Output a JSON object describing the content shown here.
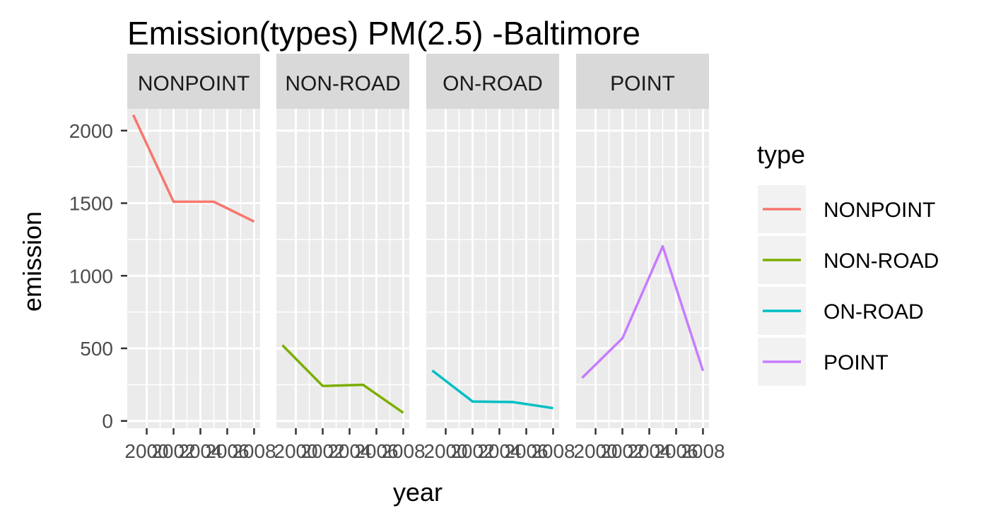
{
  "chart_data": {
    "type": "line",
    "title": "Emission(types) PM(2.5) -Baltimore",
    "xlabel": "year",
    "ylabel": "emission",
    "x": [
      1999,
      2002,
      2005,
      2008
    ],
    "x_tick_labels": [
      "2000",
      "2002",
      "2004",
      "2006",
      "2008"
    ],
    "y_ticks": [
      0,
      500,
      1000,
      1500,
      2000
    ],
    "xlim": [
      1998.55,
      2008.45
    ],
    "ylim": [
      -50,
      2150
    ],
    "grid": true,
    "facet_by": "type",
    "legend": {
      "title": "type",
      "position": "right"
    },
    "series": [
      {
        "name": "NONPOINT",
        "color": "#F8766D",
        "values": [
          2108,
          1510,
          1510,
          1373
        ]
      },
      {
        "name": "NON-ROAD",
        "color": "#7CAE00",
        "values": [
          522,
          241,
          249,
          56
        ]
      },
      {
        "name": "ON-ROAD",
        "color": "#00BFC4",
        "values": [
          347,
          134,
          130,
          88
        ]
      },
      {
        "name": "POINT",
        "color": "#C77CFF",
        "values": [
          297,
          569,
          1203,
          345
        ]
      }
    ]
  }
}
